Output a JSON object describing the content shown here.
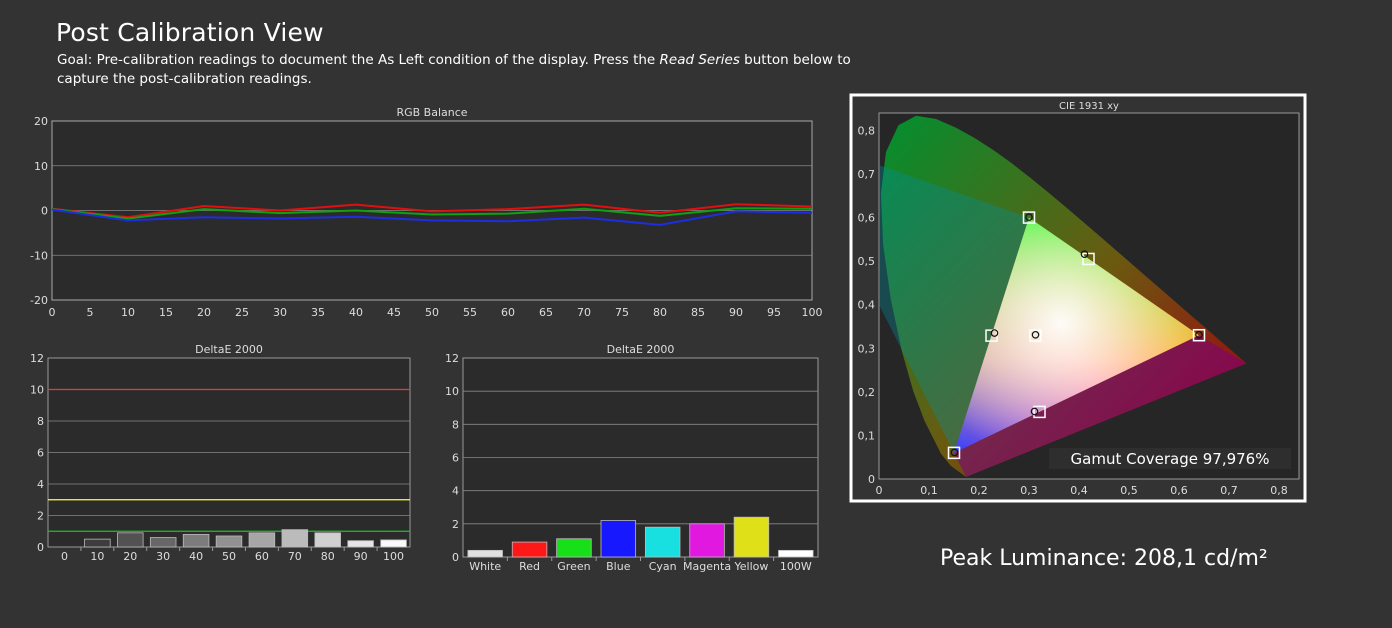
{
  "page": {
    "title": "Post Calibration View",
    "goal_prefix": "Goal: Pre-calibration readings to document the As Left condition of the display. Press the ",
    "goal_italic": "Read Series",
    "goal_suffix": " button below to capture the post-calibration readings.",
    "peak_luminance": "Peak Luminance: 208,1 cd/m²"
  },
  "chart_data": [
    {
      "id": "rgb",
      "type": "line",
      "title": "RGB Balance",
      "x": [
        0,
        10,
        20,
        30,
        40,
        50,
        60,
        70,
        80,
        90,
        100
      ],
      "x_ticks": [
        0,
        5,
        10,
        15,
        20,
        25,
        30,
        35,
        40,
        45,
        50,
        55,
        60,
        65,
        70,
        75,
        80,
        85,
        90,
        95,
        100
      ],
      "ylim": [
        -20,
        20
      ],
      "y_ticks": [
        20,
        10,
        0,
        -10,
        -20
      ],
      "grid": true,
      "series": [
        {
          "color": "#e01010",
          "values": [
            0.4,
            -1.5,
            1.0,
            0.0,
            1.3,
            -0.2,
            0.3,
            1.3,
            -0.5,
            1.4,
            0.9
          ]
        },
        {
          "color": "#10a010",
          "values": [
            0.3,
            -1.8,
            0.3,
            -0.6,
            0.0,
            -0.9,
            -0.7,
            0.4,
            -1.2,
            0.5,
            0.4
          ]
        },
        {
          "color": "#1c2ee0",
          "values": [
            0.2,
            -2.2,
            -1.5,
            -1.8,
            -1.4,
            -2.2,
            -2.4,
            -1.6,
            -3.2,
            -0.2,
            -0.5
          ]
        }
      ]
    },
    {
      "id": "gray",
      "type": "bar",
      "title": "DeltaE 2000",
      "categories": [
        "0",
        "10",
        "20",
        "30",
        "40",
        "50",
        "60",
        "70",
        "80",
        "90",
        "100"
      ],
      "values": [
        0,
        0.5,
        0.9,
        0.6,
        0.8,
        0.7,
        0.9,
        1.1,
        0.9,
        0.4,
        0.45
      ],
      "ylim": [
        0,
        12
      ],
      "y_ticks": [
        0,
        2,
        4,
        6,
        8,
        10,
        12
      ],
      "grid": true,
      "thresholds": [
        {
          "value": 10,
          "color": "#ff3030"
        },
        {
          "value": 3,
          "color": "#ffff40"
        },
        {
          "value": 1,
          "color": "#20c020"
        }
      ]
    },
    {
      "id": "color",
      "type": "bar",
      "title": "DeltaE 2000",
      "categories": [
        "White",
        "Red",
        "Green",
        "Blue",
        "Cyan",
        "Magenta",
        "Yellow",
        "100W"
      ],
      "values": [
        0.4,
        0.9,
        1.1,
        2.2,
        1.8,
        2.0,
        2.4,
        0.4
      ],
      "colors": [
        "#e0e0e0",
        "#ff1818",
        "#18e018",
        "#1818ff",
        "#18e0e0",
        "#e018e0",
        "#e0e018",
        "#ffffff"
      ],
      "ylim": [
        0,
        12
      ],
      "y_ticks": [
        0,
        2,
        4,
        6,
        8,
        10,
        12
      ],
      "grid": true
    },
    {
      "id": "cie",
      "type": "scatter",
      "title": "CIE 1931 xy",
      "x_ticks": [
        "0",
        "0,1",
        "0,2",
        "0,3",
        "0,4",
        "0,5",
        "0,6",
        "0,7",
        "0,8"
      ],
      "y_ticks": [
        "0",
        "0,1",
        "0,2",
        "0,3",
        "0,4",
        "0,5",
        "0,6",
        "0,7",
        "0,8"
      ],
      "xlim": [
        0,
        0.84
      ],
      "ylim": [
        0,
        0.84
      ],
      "gamut_coverage": "Gamut Coverage 97,976%",
      "targets": [
        [
          0.64,
          0.33
        ],
        [
          0.3,
          0.6
        ],
        [
          0.15,
          0.06
        ],
        [
          0.225,
          0.329
        ],
        [
          0.321,
          0.154
        ],
        [
          0.419,
          0.505
        ],
        [
          0.3127,
          0.329
        ]
      ],
      "measured": [
        [
          0.64,
          0.331
        ],
        [
          0.3,
          0.601
        ],
        [
          0.151,
          0.061
        ],
        [
          0.231,
          0.335
        ],
        [
          0.311,
          0.155
        ],
        [
          0.411,
          0.516
        ],
        [
          0.313,
          0.331
        ]
      ]
    }
  ]
}
